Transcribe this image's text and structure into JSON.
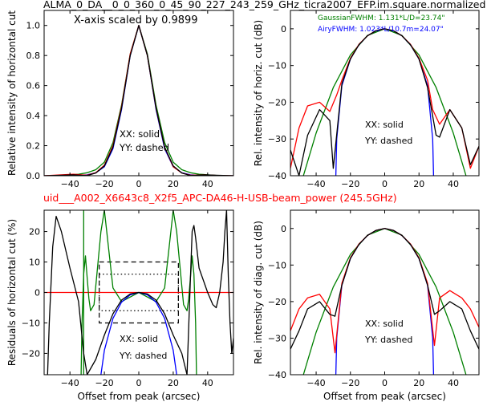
{
  "header": {
    "title": "ALMA_0_DA__0_0_360_0_45_90_227_243_259_GHz_ticra2007_EFP.im.square.normalized",
    "subtitle": "uid___A002_X6643c8_X2f5_APC-DA46-H-USB-beam_power (245.5GHz)",
    "subtitle_color": "#ff0000"
  },
  "colors": {
    "red": "#ff0000",
    "blue": "#0000ff",
    "green": "#008000",
    "black": "#000000"
  },
  "chart_data": [
    {
      "id": "p1",
      "type": "line",
      "xlabel": "",
      "ylabel": "Relative intensity of horizontal cut",
      "xlim": [
        -55,
        55
      ],
      "ylim": [
        0,
        1.1
      ],
      "xticks": [
        -40,
        -20,
        0,
        20,
        40
      ],
      "yticks": [
        0.0,
        0.2,
        0.4,
        0.6,
        0.8,
        1.0
      ],
      "ytick_labels": [
        "0.0",
        "0.2",
        "0.4",
        "0.6",
        "0.8",
        "1.0"
      ],
      "annotations": [
        "X-axis scaled by 0.9899",
        "XX: solid",
        "YY: dashed"
      ],
      "series": [
        {
          "color": "green",
          "x": [
            -55,
            -45,
            -35,
            -30,
            -25,
            -20,
            -15,
            -10,
            -5,
            0,
            5,
            10,
            15,
            20,
            25,
            30,
            35,
            45,
            55
          ],
          "y": [
            0,
            0.002,
            0.01,
            0.02,
            0.04,
            0.09,
            0.22,
            0.47,
            0.81,
            1.0,
            0.81,
            0.47,
            0.22,
            0.09,
            0.04,
            0.02,
            0.01,
            0.002,
            0
          ]
        },
        {
          "color": "blue",
          "x": [
            -55,
            -45,
            -35,
            -30,
            -25,
            -20,
            -15,
            -10,
            -5,
            0,
            5,
            10,
            15,
            20,
            25,
            30,
            35,
            45,
            55
          ],
          "y": [
            0,
            0,
            0.003,
            0.006,
            0.02,
            0.06,
            0.18,
            0.44,
            0.8,
            1.0,
            0.8,
            0.44,
            0.18,
            0.06,
            0.02,
            0.006,
            0.003,
            0,
            0
          ]
        },
        {
          "color": "red",
          "x": [
            -55,
            -45,
            -38,
            -30,
            -25,
            -20,
            -15,
            -10,
            -5,
            0,
            5,
            10,
            15,
            20,
            25,
            30,
            38,
            45,
            55
          ],
          "y": [
            0,
            0.006,
            0.01,
            0.003,
            0.02,
            0.07,
            0.2,
            0.46,
            0.81,
            1.0,
            0.8,
            0.45,
            0.19,
            0.06,
            0.018,
            0.003,
            0.006,
            0.002,
            0
          ]
        },
        {
          "color": "black",
          "x": [
            -55,
            -45,
            -38,
            -30,
            -25,
            -20,
            -15,
            -10,
            -5,
            0,
            5,
            10,
            15,
            20,
            25,
            30,
            38,
            45,
            55
          ],
          "y": [
            0,
            0.003,
            0.006,
            0.001,
            0.018,
            0.065,
            0.19,
            0.45,
            0.8,
            1.0,
            0.8,
            0.45,
            0.19,
            0.065,
            0.018,
            0.001,
            0.006,
            0.003,
            0
          ]
        }
      ]
    },
    {
      "id": "p2",
      "type": "line",
      "xlabel": "",
      "ylabel": "Rel. intensity of horiz. cut (dB)",
      "xlim": [
        -55,
        55
      ],
      "ylim": [
        -40,
        5
      ],
      "xticks": [
        -40,
        -20,
        0,
        20,
        40
      ],
      "yticks": [
        0,
        -10,
        -20,
        -30,
        -40
      ],
      "annotations": [
        "GaussianFWHM: 1.131*L/D=23.74\"",
        "AiryFWHM: 1.023*L/10.7m=24.07\"",
        "XX: solid",
        "YY: dashed"
      ],
      "series": [
        {
          "color": "green",
          "x": [
            -55,
            -50,
            -40,
            -30,
            -20,
            -10,
            0,
            10,
            20,
            30,
            40,
            50,
            55
          ],
          "y": [
            -53,
            -44,
            -28.4,
            -16,
            -7.1,
            -1.8,
            0,
            -1.8,
            -7.1,
            -16,
            -28.4,
            -44,
            -53
          ]
        },
        {
          "color": "blue",
          "x": [
            -28.5,
            -28,
            -25,
            -20,
            -15,
            -10,
            -5,
            0,
            5,
            10,
            15,
            20,
            25,
            28,
            28.5
          ],
          "y": [
            -40,
            -30,
            -15.5,
            -8.2,
            -4.3,
            -1.9,
            -0.5,
            0,
            -0.5,
            -1.9,
            -4.3,
            -8.2,
            -15.5,
            -30,
            -40
          ]
        },
        {
          "color": "red",
          "x": [
            -55,
            -50,
            -45,
            -38,
            -32,
            -28,
            -25,
            -20,
            -15,
            -10,
            -5,
            0,
            5,
            10,
            15,
            20,
            25,
            28,
            32,
            38,
            45,
            50,
            55
          ],
          "y": [
            -38,
            -27,
            -21,
            -20,
            -22.5,
            -18,
            -14,
            -8,
            -4.2,
            -1.9,
            -0.5,
            0,
            -0.5,
            -1.9,
            -4.2,
            -8,
            -14,
            -22,
            -26,
            -22,
            -27,
            -38,
            -32
          ]
        },
        {
          "color": "black",
          "x": [
            -55,
            -50,
            -45,
            -38,
            -32,
            -30,
            -25,
            -20,
            -15,
            -10,
            -5,
            0,
            5,
            10,
            15,
            20,
            25,
            30,
            32,
            38,
            45,
            50,
            55
          ],
          "y": [
            -33,
            -40,
            -29,
            -22,
            -25,
            -38,
            -15,
            -8.2,
            -4.3,
            -1.9,
            -0.5,
            0,
            -0.5,
            -1.9,
            -4.3,
            -8.2,
            -16,
            -29,
            -29.5,
            -22,
            -27,
            -37,
            -32
          ]
        }
      ]
    },
    {
      "id": "p3",
      "type": "line",
      "xlabel": "Offset from peak (arcsec)",
      "ylabel": "Residuals of horizontal cut (%)",
      "xlim": [
        -55,
        55
      ],
      "ylim": [
        -27,
        27
      ],
      "xticks": [
        -40,
        -20,
        0,
        20,
        40
      ],
      "yticks": [
        20,
        10,
        0,
        -10,
        -20
      ],
      "annotations": [
        "XX: solid",
        "YY: dashed"
      ],
      "boxes": [
        {
          "style": "dashed",
          "x": [
            -23,
            23
          ],
          "y": [
            -10,
            10
          ]
        },
        {
          "style": "dotted",
          "x": [
            -23,
            23
          ],
          "y": [
            -6,
            6
          ]
        }
      ],
      "series": [
        {
          "color": "red",
          "x": [
            -55,
            55
          ],
          "y": [
            0,
            0
          ]
        },
        {
          "color": "green",
          "x": [
            -33.5,
            -33,
            -32,
            -31,
            -30,
            -29,
            -28,
            -26,
            -24,
            -22,
            -20,
            -15,
            -10,
            -5,
            0,
            5,
            10,
            15,
            20,
            22,
            24,
            26,
            28,
            29,
            30,
            31,
            32,
            33,
            33.5
          ],
          "y": [
            -27,
            -10,
            6,
            12,
            5,
            -2,
            -6,
            -4,
            8,
            20,
            27,
            1.5,
            -3,
            -1.5,
            0,
            -1.5,
            -3,
            1.5,
            27,
            20,
            8,
            -4,
            -6,
            -2,
            5,
            12,
            6,
            -10,
            -27
          ]
        },
        {
          "color": "green",
          "x": [
            -32,
            -32
          ],
          "y": [
            -27,
            27
          ]
        },
        {
          "color": "blue",
          "x": [
            -22,
            -20,
            -15,
            -10,
            -5,
            0,
            5,
            10,
            15,
            20,
            22
          ],
          "y": [
            -27,
            -19,
            -8.5,
            -3.2,
            -0.8,
            0,
            -0.8,
            -3.2,
            -8.5,
            -19,
            -27
          ]
        },
        {
          "color": "black",
          "x": [
            -53,
            -52,
            -50,
            -48,
            -45,
            -40,
            -35,
            -32,
            -30,
            -25,
            -20,
            -15,
            -10,
            -5,
            0,
            5,
            10,
            15,
            20,
            25,
            28,
            30,
            31,
            32,
            33,
            35,
            40,
            43,
            45,
            47,
            49,
            50,
            51,
            52,
            53,
            54,
            55
          ],
          "y": [
            -27,
            -10,
            15,
            25,
            20,
            8,
            -3,
            -20,
            -27,
            -22,
            -14,
            -7,
            -2.5,
            -0.5,
            0,
            -0.5,
            -2.5,
            -7,
            -14,
            -20,
            -27,
            5,
            20,
            22,
            18,
            8,
            0,
            -4,
            -5,
            0,
            10,
            20,
            27,
            5,
            -10,
            -20,
            -15
          ]
        }
      ]
    },
    {
      "id": "p4",
      "type": "line",
      "xlabel": "Offset from peak (arcsec)",
      "ylabel": "Rel. intensity of diag. cut (dB)",
      "xlim": [
        -55,
        55
      ],
      "ylim": [
        -40,
        5
      ],
      "xticks": [
        -40,
        -20,
        0,
        20,
        40
      ],
      "yticks": [
        0,
        -10,
        -20,
        -30,
        -40
      ],
      "annotations": [
        "XX: solid",
        "YY: dashed"
      ],
      "series": [
        {
          "color": "green",
          "x": [
            -55,
            -50,
            -40,
            -30,
            -20,
            -10,
            0,
            10,
            20,
            30,
            40,
            50,
            55
          ],
          "y": [
            -53,
            -44,
            -28.4,
            -16,
            -7.1,
            -1.8,
            0,
            -1.8,
            -7.1,
            -16,
            -28.4,
            -44,
            -53
          ]
        },
        {
          "color": "blue",
          "x": [
            -28.5,
            -28,
            -25,
            -20,
            -15,
            -10,
            -5,
            0,
            5,
            10,
            15,
            20,
            25,
            28,
            28.5
          ],
          "y": [
            -40,
            -30,
            -15.5,
            -8.2,
            -4.3,
            -1.9,
            -0.5,
            0,
            -0.5,
            -1.9,
            -4.3,
            -8.2,
            -15.5,
            -30,
            -40
          ]
        },
        {
          "color": "red",
          "x": [
            -55,
            -50,
            -45,
            -38,
            -32,
            -29,
            -25,
            -20,
            -15,
            -10,
            -5,
            0,
            5,
            10,
            15,
            20,
            25,
            29,
            32,
            38,
            45,
            50,
            55
          ],
          "y": [
            -28,
            -22,
            -19,
            -18,
            -22,
            -34,
            -15,
            -8,
            -4.2,
            -1.9,
            -0.5,
            0,
            -0.5,
            -1.9,
            -4.2,
            -8,
            -15,
            -32,
            -19,
            -17,
            -19,
            -22,
            -27
          ]
        },
        {
          "color": "black",
          "x": [
            -55,
            -50,
            -45,
            -38,
            -32,
            -29,
            -25,
            -20,
            -15,
            -10,
            -5,
            0,
            5,
            10,
            15,
            20,
            25,
            29,
            32,
            38,
            45,
            50,
            55
          ],
          "y": [
            -33,
            -28,
            -22,
            -20,
            -23.5,
            -24,
            -15.5,
            -8.2,
            -4.3,
            -1.9,
            -0.5,
            0,
            -0.5,
            -1.9,
            -4.3,
            -8.2,
            -15.5,
            -23.5,
            -22.5,
            -20,
            -22,
            -28,
            -33
          ]
        }
      ]
    }
  ]
}
